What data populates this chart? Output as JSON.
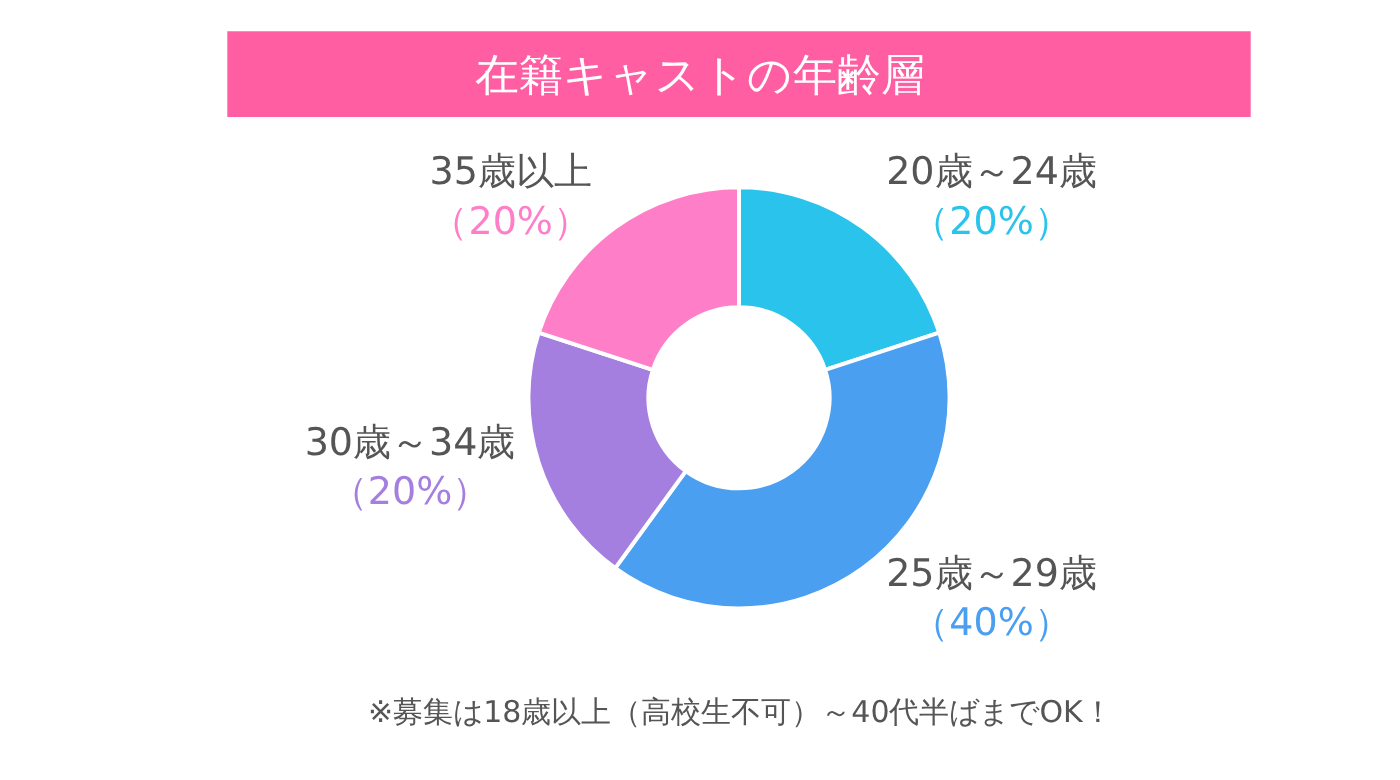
{
  "chart_data": {
    "type": "donut",
    "title": "在籍キャストの年齢層",
    "categories": [
      "20歳～24歳",
      "25歳～29歳",
      "30歳～34歳",
      "35歳以上"
    ],
    "values": [
      20,
      40,
      20,
      20
    ],
    "value_labels": [
      "（20%）",
      "（40%）",
      "（20%）",
      "（20%）"
    ],
    "colors": [
      "#29c3ec",
      "#4a9ff0",
      "#a57fe0",
      "#ff7ec8"
    ],
    "annotations": [
      "※募集は18歳以上（高校生不可）～40代半ばまでOK！"
    ],
    "legend": false
  }
}
